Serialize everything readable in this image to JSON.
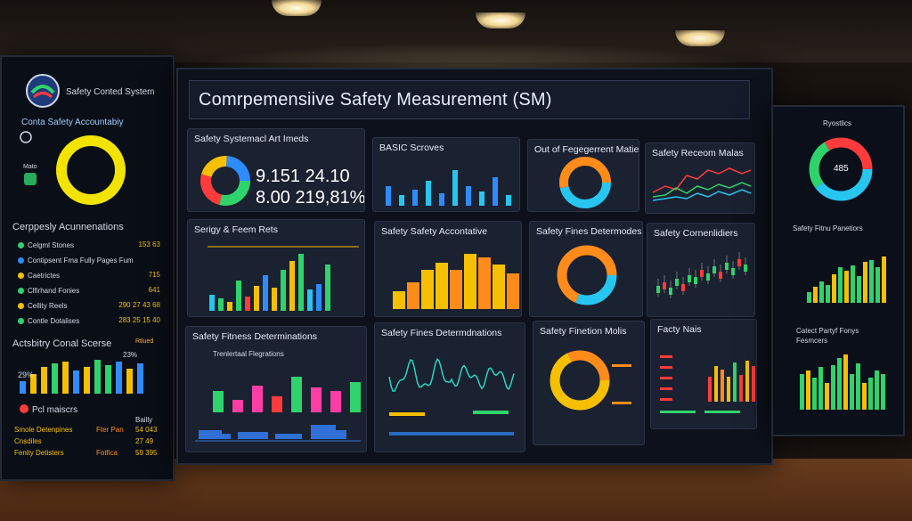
{
  "header": {
    "title": "Comrpemensiive Safety Measurement (SM)"
  },
  "left_screen": {
    "system_title": "Safety Conted System",
    "accountability": "Conta Safety Accountabiy",
    "small_a": "Mato",
    "section": "Cerppesly Acunnenations",
    "items": [
      {
        "label": "Celgml Stones",
        "value": "153 63",
        "color": "#2fd36b"
      },
      {
        "label": "Contipsent Fma Fully Pages Fum",
        "value": "",
        "color": "#2f8cff"
      },
      {
        "label": "Caetrictes",
        "value": "715",
        "color": "#f6c000"
      },
      {
        "label": "Clfirhand Fonies",
        "value": "641",
        "color": "#2fd36b"
      },
      {
        "label": "Cellity Reels",
        "value": "290 27 43 68",
        "color": "#f6c000"
      },
      {
        "label": "Contle Dotalises",
        "value": "283 25 15 40",
        "color": "#2fd36b"
      }
    ],
    "score_title": "Actsbitry Conal Scerse",
    "score_badge": "Rtlued",
    "score_pct": "29%",
    "score_pct2": "23%",
    "bottom_title": "Pcl maiscrs",
    "bottom_items": [
      {
        "label": "Smole Detenpines",
        "value": "Fter Pan",
        "value2": "54 043"
      },
      {
        "label": "Cnsdiles",
        "value": "",
        "value2": "27 49"
      },
      {
        "label": "Fenity Detisters",
        "value": "Fotfica",
        "value2": "59 395"
      }
    ],
    "bottom_header": "Bailly"
  },
  "panels": {
    "p1": {
      "title": "Safety Systemacl Art Imeds",
      "line1": "9.151 24.10",
      "line2": "8.00 219,81%"
    },
    "p2": {
      "title": "BASIC Scroves"
    },
    "p3": {
      "title": "Out of Fegegerrent Matie"
    },
    "p4": {
      "title": "Safety Receom Malas"
    },
    "p5": {
      "title": "Serigy & Feem Rets"
    },
    "p6": {
      "title": "Safety Safety Accontative"
    },
    "p7": {
      "title": "Safety Fines Determodes"
    },
    "p8": {
      "title": "Safety Cornenlidiers"
    },
    "p9": {
      "title": "Safety Fitness Determinations",
      "sub": "Trenlertaal Flegrations"
    },
    "p10": {
      "title": "Safety Fines Determdnations"
    },
    "p11": {
      "title": "Safety Finetion Molis"
    },
    "p12": {
      "title": "Facty Nais"
    }
  },
  "right_screen": {
    "title": "Ryostlics",
    "gauge_value": "485",
    "section1": "Safety Fitnu Panetiors",
    "section2": "Catect Partyf Fonys Fesmcers"
  },
  "colors": {
    "green": "#2fd36b",
    "blue": "#2f8cff",
    "yellow": "#f6c000",
    "orange": "#ff8c1a",
    "red": "#ff3b3b",
    "pink": "#ff3ea5",
    "cyan": "#27c6f0"
  }
}
